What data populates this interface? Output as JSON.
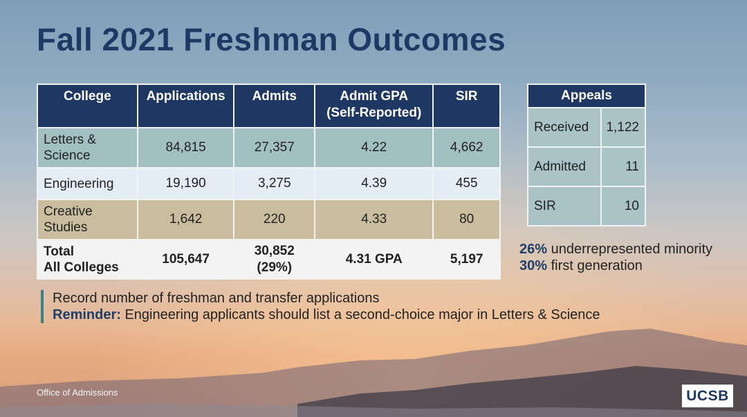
{
  "slide": {
    "title": "Fall 2021 Freshman Outcomes",
    "footer": "Office of Admissions",
    "logo": "UCSB"
  },
  "main_table": {
    "headers": [
      "College",
      "Applications",
      "Admits",
      "Admit GPA",
      "(Self-Reported)",
      "SIR"
    ],
    "rows": [
      {
        "college_line1": "Letters &",
        "college_line2": "Science",
        "applications": "84,815",
        "admits": "27,357",
        "gpa": "4.22",
        "sir": "4,662"
      },
      {
        "college_line1": "Engineering",
        "college_line2": "",
        "applications": "19,190",
        "admits": "3,275",
        "gpa": "4.39",
        "sir": "455"
      },
      {
        "college_line1": "Creative",
        "college_line2": "Studies",
        "applications": "1,642",
        "admits": "220",
        "gpa": "4.33",
        "sir": "80"
      }
    ],
    "total": {
      "label_line1": "Total",
      "label_line2": "All Colleges",
      "applications": "105,647",
      "admits_line1": "30,852",
      "admits_line2": "(29%)",
      "gpa": "4.31 GPA",
      "sir": "5,197"
    }
  },
  "appeals": {
    "header": "Appeals",
    "rows": [
      {
        "label": "Received",
        "value": "1,122"
      },
      {
        "label": "Admitted",
        "value": "11"
      },
      {
        "label": "SIR",
        "value": "10"
      }
    ]
  },
  "stats": [
    {
      "pct": "26%",
      "text": " underrepresented minority"
    },
    {
      "pct": "30%",
      "text": " first generation"
    }
  ],
  "notes": {
    "line1": "Record number of freshman and transfer applications",
    "reminder_label": "Reminder:",
    "reminder_text": " Engineering applicants should list a second-choice major in Letters & Science"
  },
  "colors": {
    "header_bg": "#1e3863",
    "title": "#1c3a64",
    "letters_science_row": "#a2c0c1",
    "engineering_row": "#e4ecf6",
    "creative_studies_row": "#c9bd9d",
    "accent_bar": "#3a7f8a"
  }
}
